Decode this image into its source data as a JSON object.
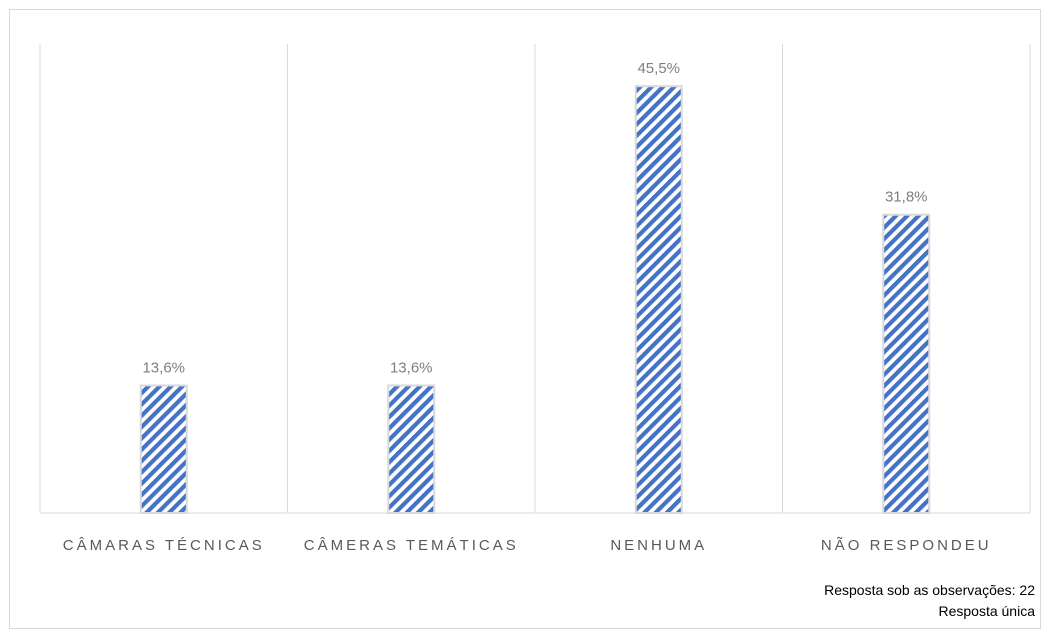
{
  "chart_data": {
    "type": "bar",
    "title": "",
    "xlabel": "",
    "ylabel": "",
    "categories": [
      "CÂMARAS TÉCNICAS",
      "CÂMERAS TEMÁTICAS",
      "NENHUMA",
      "NÃO RESPONDEU"
    ],
    "values": [
      13.6,
      13.6,
      45.5,
      31.8
    ],
    "data_labels": [
      "13,6%",
      "13,6%",
      "45,5%",
      "31,8%"
    ],
    "ylim": [
      0,
      50
    ],
    "grid": "vertical separators",
    "legend": "none",
    "bar_fill": "diagonal stripes",
    "colors": {
      "bar_stripe": "#4472c4",
      "bar_background": "#ffffff",
      "bar_border": "#d9d9d9",
      "gridline": "#d9d9d9",
      "data_label": "#7f7f7f",
      "category_label": "#595959"
    }
  },
  "notes": {
    "line1": "Resposta sob as observações: 22",
    "line2": "Resposta única"
  }
}
